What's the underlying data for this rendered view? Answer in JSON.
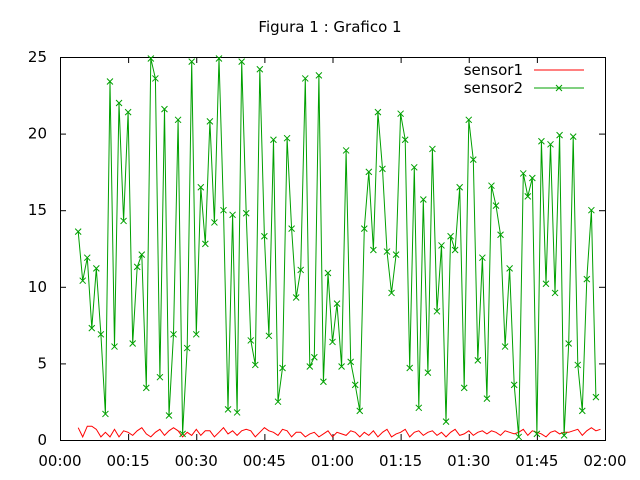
{
  "chart_data": {
    "type": "line",
    "title": "Figura 1 : Grafico 1",
    "xlabel": "",
    "ylabel": "",
    "xlim_minutes": [
      0,
      120
    ],
    "ylim": [
      0,
      25
    ],
    "x_ticks": [
      {
        "value": 0,
        "label": "00:00"
      },
      {
        "value": 15,
        "label": "00:15"
      },
      {
        "value": 30,
        "label": "00:30"
      },
      {
        "value": 45,
        "label": "00:45"
      },
      {
        "value": 60,
        "label": "01:00"
      },
      {
        "value": 75,
        "label": "01:15"
      },
      {
        "value": 90,
        "label": "01:30"
      },
      {
        "value": 105,
        "label": "01:45"
      },
      {
        "value": 120,
        "label": "02:00"
      }
    ],
    "y_ticks": [
      {
        "value": 0,
        "label": "0"
      },
      {
        "value": 5,
        "label": "5"
      },
      {
        "value": 10,
        "label": "10"
      },
      {
        "value": 15,
        "label": "15"
      },
      {
        "value": 20,
        "label": "20"
      },
      {
        "value": 25,
        "label": "25"
      }
    ],
    "grid": false,
    "legend_position": "top-right",
    "x_step_minutes": 1,
    "series": [
      {
        "name": "sensor1",
        "color": "#ff0000",
        "marker": "none",
        "x_start": 4,
        "values": [
          0.8,
          0.2,
          0.9,
          0.9,
          0.7,
          0.2,
          0.5,
          0.2,
          0.7,
          0.2,
          0.6,
          0.5,
          0.3,
          0.6,
          0.8,
          0.4,
          0.2,
          0.5,
          0.7,
          0.3,
          0.6,
          0.8,
          0.6,
          0.2,
          0.5,
          0.3,
          0.7,
          0.3,
          0.6,
          0.6,
          0.2,
          0.5,
          0.8,
          0.4,
          0.6,
          0.3,
          0.6,
          0.7,
          0.6,
          0.2,
          0.5,
          0.8,
          0.6,
          0.5,
          0.3,
          0.7,
          0.6,
          0.2,
          0.5,
          0.5,
          0.2,
          0.4,
          0.5,
          0.2,
          0.4,
          0.6,
          0.2,
          0.5,
          0.4,
          0.3,
          0.6,
          0.5,
          0.2,
          0.5,
          0.3,
          0.6,
          0.2,
          0.5,
          0.7,
          0.2,
          0.4,
          0.5,
          0.7,
          0.2,
          0.5,
          0.6,
          0.3,
          0.5,
          0.6,
          0.3,
          0.5,
          0.2,
          0.5,
          0.7,
          0.3,
          0.4,
          0.6,
          0.3,
          0.5,
          0.6,
          0.4,
          0.6,
          0.5,
          0.3,
          0.6,
          0.5,
          0.4,
          0.5,
          0.7,
          0.3,
          0.6,
          0.5,
          0.4,
          0.2,
          0.5,
          0.6,
          0.4,
          0.5,
          0.5,
          0.6,
          0.7,
          0.3,
          0.6,
          0.8,
          0.6,
          0.7
        ]
      },
      {
        "name": "sensor2",
        "color": "#00a000",
        "marker": "x",
        "x_start": 4,
        "values": [
          13.6,
          10.4,
          11.9,
          7.3,
          11.2,
          6.9,
          1.7,
          23.4,
          6.1,
          22.0,
          14.3,
          21.4,
          6.3,
          11.3,
          12.1,
          3.4,
          24.9,
          23.6,
          4.1,
          21.6,
          1.6,
          6.9,
          20.9,
          0.4,
          6.0,
          24.7,
          6.9,
          16.5,
          12.8,
          20.8,
          14.2,
          24.9,
          15.0,
          2.0,
          14.7,
          1.8,
          24.7,
          14.8,
          6.5,
          4.9,
          24.2,
          13.3,
          6.8,
          19.6,
          2.5,
          4.7,
          19.7,
          13.8,
          9.3,
          11.1,
          23.6,
          4.8,
          5.4,
          23.8,
          3.8,
          10.9,
          6.4,
          8.9,
          4.8,
          18.9,
          5.1,
          3.6,
          1.9,
          13.8,
          17.5,
          12.4,
          21.4,
          17.7,
          12.3,
          9.6,
          12.1,
          21.3,
          19.6,
          4.7,
          17.8,
          2.1,
          15.7,
          4.4,
          19.0,
          8.4,
          12.7,
          1.2,
          13.3,
          12.4,
          16.5,
          3.4,
          20.9,
          18.3,
          5.2,
          11.9,
          2.7,
          16.6,
          15.3,
          13.4,
          6.1,
          11.2,
          3.6,
          0.2,
          17.4,
          15.9,
          17.1,
          0.4,
          19.5,
          10.2,
          19.3,
          9.6,
          19.9,
          0.3,
          6.3,
          19.8,
          4.9,
          1.9,
          10.5,
          15.0,
          2.8
        ]
      }
    ]
  }
}
